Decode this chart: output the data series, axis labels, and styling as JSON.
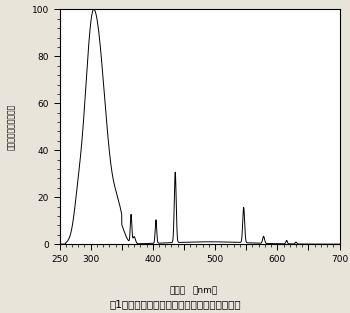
{
  "title": "図1　供試した健康線用蛍光ランプの分光分布",
  "xlabel_line1": "波　長",
  "xlabel_line2": "nm）",
  "xlabel_prefix": "（",
  "ylabel": "（比）　エネルギー比",
  "xlim": [
    250,
    700
  ],
  "ylim": [
    0,
    100
  ],
  "xticks": [
    250,
    300,
    350,
    400,
    450,
    500,
    550,
    600,
    650,
    700
  ],
  "yticks": [
    0,
    20,
    40,
    60,
    80,
    100
  ],
  "background_color": "#ffffff",
  "line_color": "#000000",
  "fig_background": "#e8e4da"
}
